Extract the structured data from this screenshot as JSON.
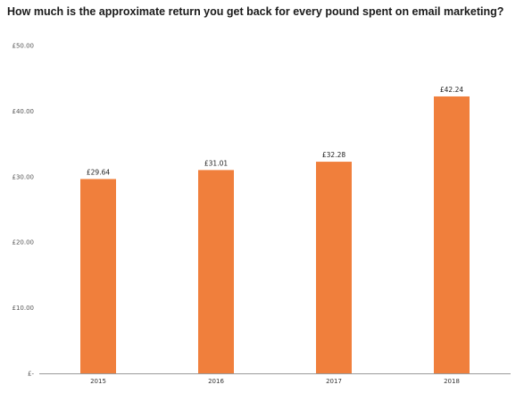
{
  "chart_data": {
    "type": "bar",
    "title": "How much is the approximate return you get back for every pound spent on email marketing?",
    "categories": [
      "2015",
      "2016",
      "2017",
      "2018"
    ],
    "values": [
      29.64,
      31.01,
      32.28,
      42.24
    ],
    "data_labels": [
      "£29.64",
      "£31.01",
      "£32.28",
      "£42.24"
    ],
    "ylim": [
      0,
      50
    ],
    "yticks": [
      0,
      10,
      20,
      30,
      40,
      50
    ],
    "ytick_labels": [
      "£-",
      "£10.00",
      "£20.00",
      "£30.00",
      "£40.00",
      "£50.00"
    ],
    "xlabel": "",
    "ylabel": "",
    "grid": false,
    "bar_color": "#F07F3C",
    "axis_color": "#9a9a9a"
  }
}
